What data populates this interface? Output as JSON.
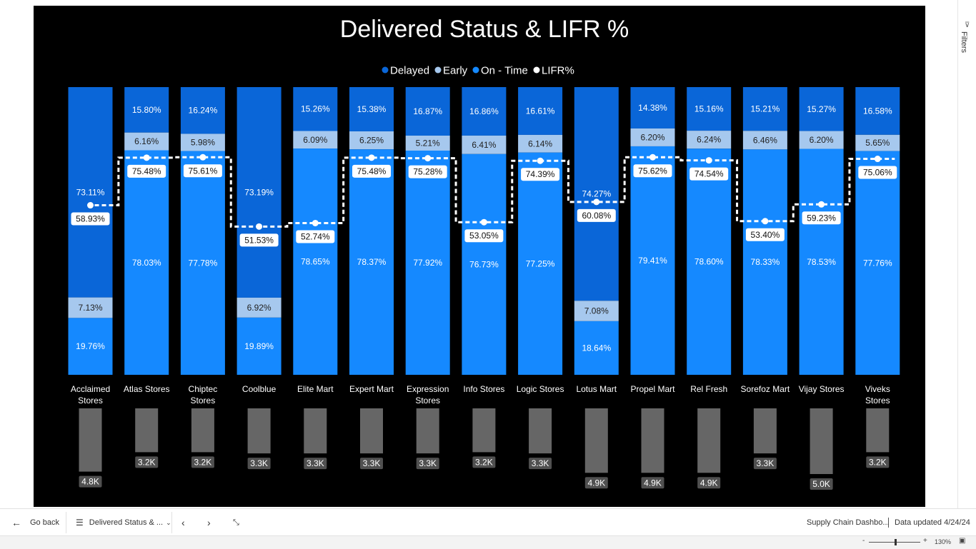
{
  "chart_data": {
    "type": "bar",
    "title": "Delivered Status & LIFR %",
    "legend": [
      {
        "name": "Delayed",
        "color": "#0a66d8"
      },
      {
        "name": "Early",
        "color": "#a6c8ee"
      },
      {
        "name": "On - Time",
        "color": "#1589ff"
      },
      {
        "name": "LIFR%",
        "color": "#ffffff"
      }
    ],
    "legend_position": "top-center",
    "categories": [
      "Acclaimed Stores",
      "Atlas Stores",
      "Chiptec Stores",
      "Coolblue",
      "Elite Mart",
      "Expert Mart",
      "Expression Stores",
      "Info Stores",
      "Logic Stores",
      "Lotus Mart",
      "Propel Mart",
      "Rel Fresh",
      "Sorefoz Mart",
      "Vijay Stores",
      "Viveks Stores"
    ],
    "series": [
      {
        "name": "Delayed",
        "values": [
          73.11,
          15.8,
          16.24,
          73.19,
          15.26,
          15.38,
          16.87,
          16.86,
          16.61,
          74.27,
          14.38,
          15.16,
          15.21,
          15.27,
          16.58
        ]
      },
      {
        "name": "Early",
        "values": [
          7.13,
          6.16,
          5.98,
          6.92,
          6.09,
          6.25,
          5.21,
          6.41,
          6.14,
          7.08,
          6.2,
          6.24,
          6.46,
          6.2,
          5.65
        ]
      },
      {
        "name": "On - Time",
        "values": [
          19.76,
          78.03,
          77.78,
          19.89,
          78.65,
          78.37,
          77.92,
          76.73,
          77.25,
          18.64,
          79.41,
          78.6,
          78.33,
          78.53,
          77.76
        ]
      },
      {
        "name": "LIFR%",
        "values": [
          58.93,
          75.48,
          75.61,
          51.53,
          52.74,
          75.48,
          75.28,
          53.05,
          74.39,
          60.08,
          75.62,
          74.54,
          53.4,
          59.23,
          75.06
        ]
      }
    ],
    "stack_order_top_to_bottom": [
      "Delayed",
      "Early",
      "On - Time"
    ],
    "ylim": [
      0,
      100
    ],
    "volume": {
      "values": [
        4.8,
        3.2,
        3.2,
        3.3,
        3.3,
        3.3,
        3.3,
        3.2,
        3.3,
        4.9,
        4.9,
        4.9,
        3.3,
        5.0,
        3.2
      ],
      "labels": [
        "4.8K",
        "3.2K",
        "3.2K",
        "3.3K",
        "3.3K",
        "3.3K",
        "3.3K",
        "3.2K",
        "3.3K",
        "4.9K",
        "4.9K",
        "4.9K",
        "3.3K",
        "5.0K",
        "3.2K"
      ]
    }
  },
  "right_pane": {
    "filters_label": "Filters"
  },
  "bottom_bar": {
    "go_back": "Go back",
    "page_tab": "Delivered Status & ...",
    "report_name": "Supply Chain Dashbo...",
    "data_updated": "Data updated 4/24/24",
    "zoom": "130%"
  }
}
